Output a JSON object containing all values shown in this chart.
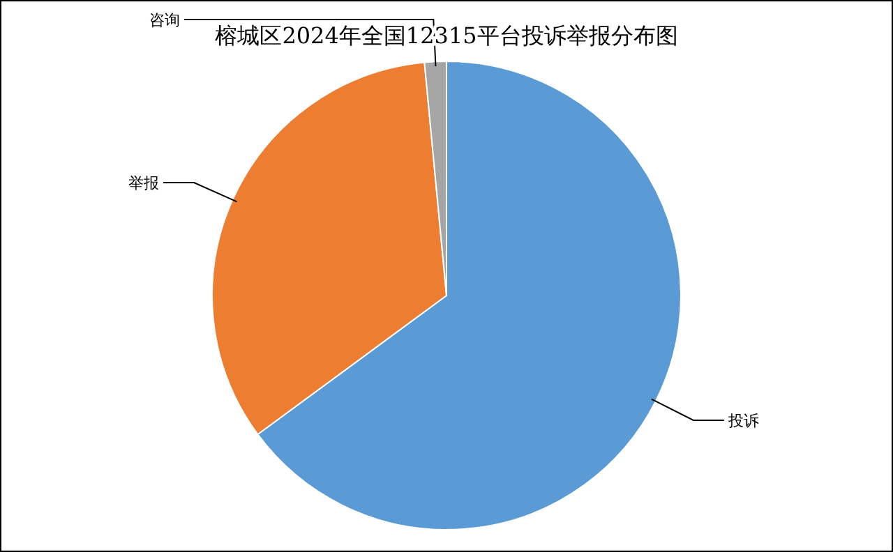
{
  "chart_data": {
    "type": "pie",
    "title": "榕城区2024年全国12315平台投诉举报分布图",
    "categories": [
      "投诉",
      "举报",
      "咨询"
    ],
    "values": [
      64.9,
      33.6,
      1.5
    ],
    "colors": [
      "#5b9bd5",
      "#ed7d31",
      "#a5a5a5"
    ],
    "legend": false
  }
}
